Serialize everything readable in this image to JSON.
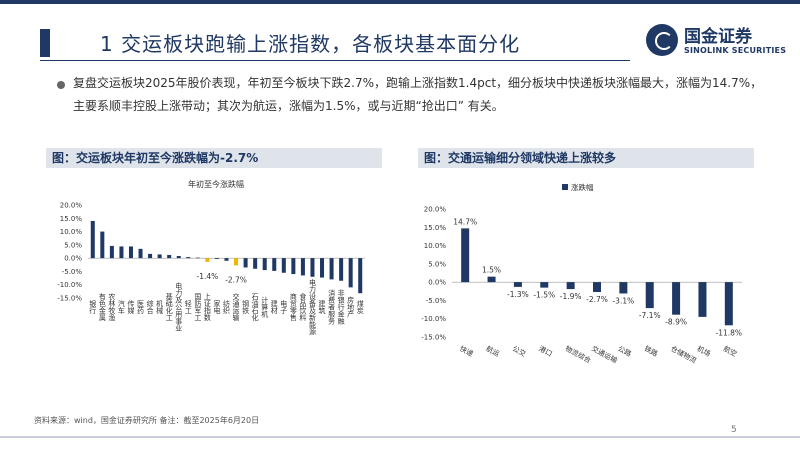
{
  "header": {
    "title": "1 交运板块跑输上涨指数，各板块基本面分化",
    "logo_cn": "国金证券",
    "logo_en": "SINOLINK SECURITIES"
  },
  "summary": "复盘交运板块2025年股价表现，年初至今板块下跌2.7%，跑输上涨指数1.4pct，细分板块中快递板块涨幅最大，涨幅为14.7%，主要系顺丰控股上涨带动；其次为航运，涨幅为1.5%，或与近期“抢出口” 有关。",
  "colors": {
    "primary": "#1f3864",
    "highlight": "#f0b400"
  },
  "chart_data": [
    {
      "type": "bar",
      "caption": "图：交运板块年初至今涨跌幅为-2.7%",
      "title": "年初至今涨跌幅",
      "categories": [
        "银行",
        "有色金属",
        "农林牧渔",
        "汽车",
        "传媒",
        "医药",
        "综合",
        "机械",
        "基础化工",
        "电力及公用事业",
        "轻工",
        "国防军工",
        "上证指数",
        "家电",
        "纺织",
        "交通运输",
        "钢铁",
        "石油石化",
        "计算机",
        "建材",
        "电子",
        "商贸零售",
        "食品饮料",
        "电力设备及新能源",
        "建筑",
        "消费者服务",
        "非银行金融",
        "房地产",
        "煤炭"
      ],
      "values": [
        14.0,
        10.0,
        4.6,
        4.4,
        4.4,
        3.5,
        1.6,
        1.4,
        1.2,
        0.8,
        0.4,
        0.2,
        -1.4,
        -0.3,
        -1.0,
        -2.7,
        -3.5,
        -4.0,
        -4.5,
        -4.8,
        -5.5,
        -6.0,
        -6.5,
        -7.0,
        -7.3,
        -8.0,
        -8.5,
        -11.0,
        -13.2
      ],
      "highlight_categories": [
        "上证指数",
        "交通运输"
      ],
      "labels": [
        {
          "category": "上证指数",
          "text": "-1.4%"
        },
        {
          "category": "交通运输",
          "text": "-2.7%"
        }
      ],
      "ylim": [
        -15,
        20
      ],
      "yticks": [
        "20.0%",
        "15.0%",
        "10.0%",
        "5.0%",
        "0.0%",
        "-5.0%",
        "-10.0%",
        "-15.0%"
      ],
      "xlabel": "",
      "ylabel": ""
    },
    {
      "type": "bar",
      "caption": "图：交通运输细分领域快递上涨较多",
      "legend": "涨跌幅",
      "categories": [
        "快递",
        "航运",
        "公交",
        "港口",
        "物流综合",
        "交通运输",
        "公路",
        "铁路",
        "仓储物流",
        "机场",
        "航空"
      ],
      "values": [
        14.7,
        1.5,
        -1.3,
        -1.5,
        -1.9,
        -2.7,
        -3.1,
        -7.1,
        -8.9,
        -9.5,
        -11.8
      ],
      "labels": [
        "14.7%",
        "1.5%",
        "-1.3%",
        "-1.5%",
        "-1.9%",
        "-2.7%",
        "-3.1%",
        "-7.1%",
        "-8.9%",
        "",
        "-11.8%"
      ],
      "ylim": [
        -15,
        20
      ],
      "yticks": [
        "20.0%",
        "15.0%",
        "10.0%",
        "5.0%",
        "0.0%",
        "-5.0%",
        "-10.0%",
        "-15.0%"
      ],
      "xlabel": "",
      "ylabel": ""
    }
  ],
  "footer": {
    "source": "资料来源：wind，国金证券研究所   备注：截至2025年6月20日",
    "page": "5"
  }
}
